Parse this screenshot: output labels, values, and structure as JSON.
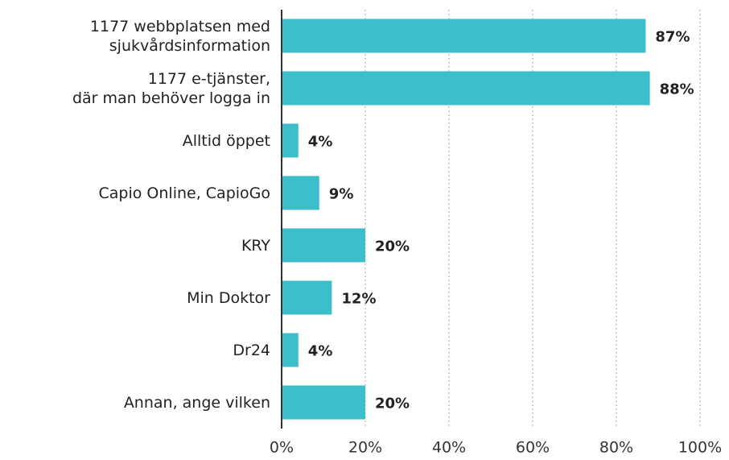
{
  "chart_data": {
    "type": "barh",
    "categories": [
      "1177 webbplatsen med\nsjukvårdsinformation",
      "1177 e-tjänster,\ndär man behöver logga in",
      "Alltid öppet",
      "Capio Online, CapioGo",
      "KRY",
      "Min Doktor",
      "Dr24",
      "Annan, ange vilken"
    ],
    "values": [
      87,
      88,
      4,
      9,
      20,
      12,
      4,
      20
    ],
    "value_labels": [
      "87%",
      "88%",
      "4%",
      "9%",
      "20%",
      "12%",
      "4%",
      "20%"
    ],
    "color": "#3dbfcb",
    "xlim": [
      0,
      100
    ],
    "xticks": [
      {
        "value": 0,
        "label": "0%"
      },
      {
        "value": 20,
        "label": "20%"
      },
      {
        "value": 40,
        "label": "40%"
      },
      {
        "value": 60,
        "label": "60%"
      },
      {
        "value": 80,
        "label": "80%"
      },
      {
        "value": 100,
        "label": "100%"
      }
    ],
    "grid": true
  }
}
